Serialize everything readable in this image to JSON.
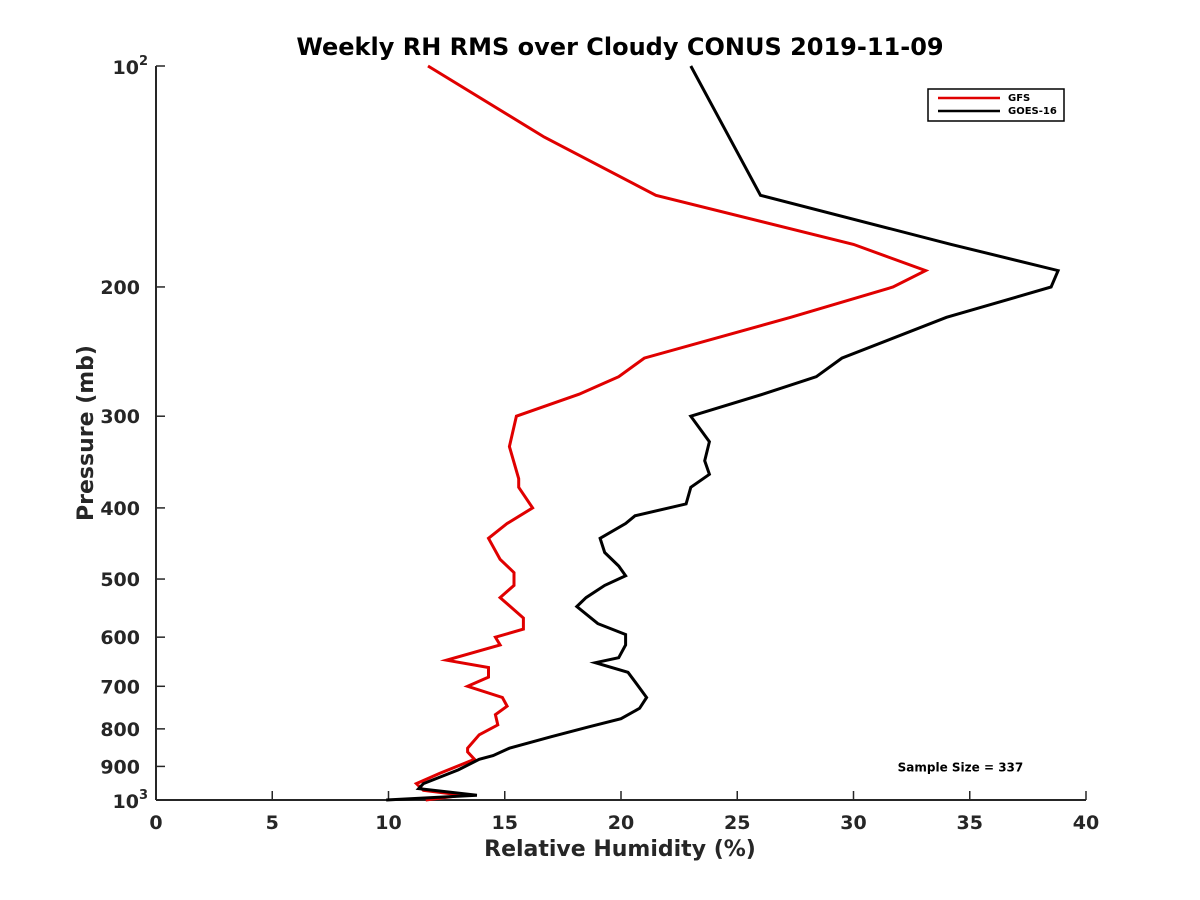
{
  "chart_data": {
    "type": "line",
    "title": "Weekly RH RMS over Cloudy CONUS 2019-11-09",
    "xlabel": "Relative Humidity (%)",
    "ylabel": "Pressure (mb)",
    "xlim": [
      0,
      40
    ],
    "ylim": [
      100,
      1000
    ],
    "yscale": "log",
    "yreversed": true,
    "grid": false,
    "legend_position": "top-right",
    "x_ticks": [
      {
        "value": 0,
        "label": "0"
      },
      {
        "value": 5,
        "label": "5"
      },
      {
        "value": 10,
        "label": "10"
      },
      {
        "value": 15,
        "label": "15"
      },
      {
        "value": 20,
        "label": "20"
      },
      {
        "value": 25,
        "label": "25"
      },
      {
        "value": 30,
        "label": "30"
      },
      {
        "value": 35,
        "label": "35"
      },
      {
        "value": 40,
        "label": "40"
      }
    ],
    "y_ticks": [
      {
        "value": 100,
        "base": "10",
        "exp": "2"
      },
      {
        "value": 200,
        "label": "200"
      },
      {
        "value": 300,
        "label": "300"
      },
      {
        "value": 400,
        "label": "400"
      },
      {
        "value": 500,
        "label": "500"
      },
      {
        "value": 600,
        "label": "600"
      },
      {
        "value": 700,
        "label": "700"
      },
      {
        "value": 800,
        "label": "800"
      },
      {
        "value": 900,
        "label": "900"
      },
      {
        "value": 1000,
        "base": "10",
        "exp": "3"
      }
    ],
    "series": [
      {
        "name": "GFS",
        "color": "#e00000",
        "points": [
          [
            11.7,
            100
          ],
          [
            16.7,
            125
          ],
          [
            21.5,
            150
          ],
          [
            30.0,
            175
          ],
          [
            33.1,
            190
          ],
          [
            31.7,
            200
          ],
          [
            27.3,
            220
          ],
          [
            21.0,
            250
          ],
          [
            19.9,
            265
          ],
          [
            18.2,
            280
          ],
          [
            15.5,
            300
          ],
          [
            15.2,
            330
          ],
          [
            15.6,
            365
          ],
          [
            15.6,
            375
          ],
          [
            16.2,
            400
          ],
          [
            15.1,
            420
          ],
          [
            14.3,
            440
          ],
          [
            14.8,
            470
          ],
          [
            15.4,
            490
          ],
          [
            15.4,
            510
          ],
          [
            14.8,
            530
          ],
          [
            15.8,
            565
          ],
          [
            15.8,
            585
          ],
          [
            14.6,
            600
          ],
          [
            14.8,
            615
          ],
          [
            12.5,
            645
          ],
          [
            14.3,
            660
          ],
          [
            14.3,
            680
          ],
          [
            13.4,
            700
          ],
          [
            14.9,
            725
          ],
          [
            15.1,
            745
          ],
          [
            14.6,
            765
          ],
          [
            14.7,
            790
          ],
          [
            13.9,
            815
          ],
          [
            13.4,
            850
          ],
          [
            13.4,
            860
          ],
          [
            13.7,
            880
          ],
          [
            12.2,
            920
          ],
          [
            11.2,
            950
          ],
          [
            11.5,
            970
          ],
          [
            13.2,
            985
          ],
          [
            11.6,
            1000
          ]
        ]
      },
      {
        "name": "GOES-16",
        "color": "#000000",
        "points": [
          [
            23.0,
            100
          ],
          [
            26.0,
            150
          ],
          [
            34.2,
            175
          ],
          [
            38.8,
            190
          ],
          [
            38.5,
            200
          ],
          [
            34.0,
            220
          ],
          [
            29.5,
            250
          ],
          [
            28.4,
            265
          ],
          [
            26.1,
            280
          ],
          [
            23.0,
            300
          ],
          [
            23.8,
            325
          ],
          [
            23.6,
            345
          ],
          [
            23.8,
            360
          ],
          [
            23.0,
            375
          ],
          [
            22.8,
            395
          ],
          [
            20.6,
            410
          ],
          [
            20.2,
            420
          ],
          [
            19.1,
            440
          ],
          [
            19.3,
            460
          ],
          [
            19.9,
            480
          ],
          [
            20.2,
            495
          ],
          [
            19.3,
            510
          ],
          [
            18.5,
            530
          ],
          [
            18.1,
            545
          ],
          [
            19.0,
            575
          ],
          [
            20.2,
            595
          ],
          [
            20.2,
            615
          ],
          [
            19.9,
            640
          ],
          [
            18.9,
            650
          ],
          [
            20.3,
            670
          ],
          [
            20.6,
            690
          ],
          [
            21.1,
            725
          ],
          [
            20.8,
            750
          ],
          [
            20.0,
            775
          ],
          [
            18.6,
            795
          ],
          [
            17.0,
            820
          ],
          [
            15.2,
            850
          ],
          [
            14.5,
            870
          ],
          [
            13.9,
            880
          ],
          [
            13.0,
            910
          ],
          [
            11.5,
            950
          ],
          [
            11.3,
            965
          ],
          [
            13.8,
            985
          ],
          [
            9.9,
            1000
          ]
        ]
      }
    ],
    "annotations": [
      {
        "text": "Sample Size = 337",
        "x": 34.6,
        "y": 900
      }
    ]
  }
}
